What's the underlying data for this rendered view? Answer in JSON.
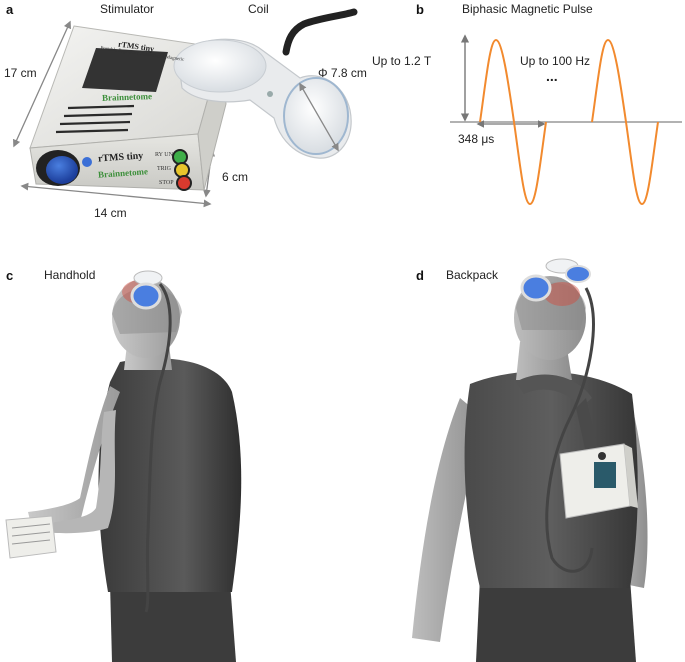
{
  "panel_a": {
    "label": "a",
    "stimulator_caption": "Stimulator",
    "coil_caption": "Coil",
    "dim_height": "17 cm",
    "dim_width": "14 cm",
    "dim_depth": "6 cm",
    "dim_coil": "Φ 7.8 cm",
    "device_model": "rTMS tiny",
    "device_subtitle": "Portable Repetitive Transcranial Magnetic",
    "brand": "Brainnetome",
    "button_labels": [
      "RY UN",
      "TRIG",
      "STOP"
    ]
  },
  "panel_b": {
    "label": "b",
    "title": "Biphasic Magnetic Pulse",
    "amplitude": "Up to 1.2 T",
    "frequency": "Up to 100 Hz",
    "ellipsis": "...",
    "duration": "348 μs",
    "pulse_color": "#f28a2e"
  },
  "panel_c": {
    "label": "c",
    "caption": "Handhold"
  },
  "panel_d": {
    "label": "d",
    "caption": "Backpack"
  }
}
